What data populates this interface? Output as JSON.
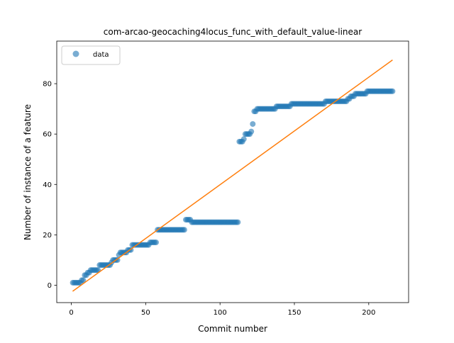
{
  "chart_data": {
    "type": "scatter",
    "title": "com-arcao-geocaching4locus_func_with_default_value-linear",
    "xlabel": "Commit number",
    "ylabel": "Number of instance of a feature",
    "xlim": [
      -9.8,
      226.8
    ],
    "ylim": [
      -6.9,
      96.9
    ],
    "xticks": [
      0,
      50,
      100,
      150,
      200
    ],
    "yticks": [
      0,
      20,
      40,
      60,
      80
    ],
    "grid": false,
    "legend_position": "top-left",
    "series": [
      {
        "name": "data",
        "kind": "scatter",
        "color": "#1f77b4",
        "points": [
          [
            1,
            1
          ],
          [
            2,
            1
          ],
          [
            3,
            1
          ],
          [
            4,
            1
          ],
          [
            5,
            1
          ],
          [
            6,
            1
          ],
          [
            7,
            2
          ],
          [
            8,
            2
          ],
          [
            9,
            4
          ],
          [
            10,
            4
          ],
          [
            11,
            5
          ],
          [
            12,
            5
          ],
          [
            13,
            6
          ],
          [
            14,
            6
          ],
          [
            15,
            6
          ],
          [
            16,
            6
          ],
          [
            17,
            6
          ],
          [
            18,
            6
          ],
          [
            19,
            8
          ],
          [
            20,
            8
          ],
          [
            21,
            8
          ],
          [
            22,
            8
          ],
          [
            23,
            8
          ],
          [
            24,
            8
          ],
          [
            25,
            8
          ],
          [
            26,
            8
          ],
          [
            27,
            9
          ],
          [
            28,
            10
          ],
          [
            29,
            10
          ],
          [
            30,
            10
          ],
          [
            31,
            10
          ],
          [
            32,
            12
          ],
          [
            33,
            13
          ],
          [
            34,
            13
          ],
          [
            35,
            13
          ],
          [
            36,
            13
          ],
          [
            37,
            13
          ],
          [
            38,
            14
          ],
          [
            39,
            14
          ],
          [
            40,
            14
          ],
          [
            41,
            16
          ],
          [
            42,
            16
          ],
          [
            43,
            16
          ],
          [
            44,
            16
          ],
          [
            45,
            16
          ],
          [
            46,
            16
          ],
          [
            47,
            16
          ],
          [
            48,
            16
          ],
          [
            49,
            16
          ],
          [
            50,
            16
          ],
          [
            51,
            16
          ],
          [
            52,
            16
          ],
          [
            53,
            17
          ],
          [
            54,
            17
          ],
          [
            55,
            17
          ],
          [
            56,
            17
          ],
          [
            57,
            17
          ],
          [
            58,
            22
          ],
          [
            59,
            22
          ],
          [
            60,
            22
          ],
          [
            61,
            22
          ],
          [
            62,
            22
          ],
          [
            63,
            22
          ],
          [
            64,
            22
          ],
          [
            65,
            22
          ],
          [
            66,
            22
          ],
          [
            67,
            22
          ],
          [
            68,
            22
          ],
          [
            69,
            22
          ],
          [
            70,
            22
          ],
          [
            71,
            22
          ],
          [
            72,
            22
          ],
          [
            73,
            22
          ],
          [
            74,
            22
          ],
          [
            75,
            22
          ],
          [
            76,
            22
          ],
          [
            77,
            26
          ],
          [
            78,
            26
          ],
          [
            79,
            26
          ],
          [
            80,
            26
          ],
          [
            81,
            25
          ],
          [
            82,
            25
          ],
          [
            83,
            25
          ],
          [
            84,
            25
          ],
          [
            85,
            25
          ],
          [
            86,
            25
          ],
          [
            87,
            25
          ],
          [
            88,
            25
          ],
          [
            89,
            25
          ],
          [
            90,
            25
          ],
          [
            91,
            25
          ],
          [
            92,
            25
          ],
          [
            93,
            25
          ],
          [
            94,
            25
          ],
          [
            95,
            25
          ],
          [
            96,
            25
          ],
          [
            97,
            25
          ],
          [
            98,
            25
          ],
          [
            99,
            25
          ],
          [
            100,
            25
          ],
          [
            101,
            25
          ],
          [
            102,
            25
          ],
          [
            103,
            25
          ],
          [
            104,
            25
          ],
          [
            105,
            25
          ],
          [
            106,
            25
          ],
          [
            107,
            25
          ],
          [
            108,
            25
          ],
          [
            109,
            25
          ],
          [
            110,
            25
          ],
          [
            111,
            25
          ],
          [
            112,
            25
          ],
          [
            113,
            57
          ],
          [
            114,
            57
          ],
          [
            115,
            57
          ],
          [
            116,
            58
          ],
          [
            117,
            60
          ],
          [
            118,
            60
          ],
          [
            119,
            60
          ],
          [
            120,
            60
          ],
          [
            121,
            61
          ],
          [
            122,
            64
          ],
          [
            123,
            69
          ],
          [
            124,
            69
          ],
          [
            125,
            70
          ],
          [
            126,
            70
          ],
          [
            127,
            70
          ],
          [
            128,
            70
          ],
          [
            129,
            70
          ],
          [
            130,
            70
          ],
          [
            131,
            70
          ],
          [
            132,
            70
          ],
          [
            133,
            70
          ],
          [
            134,
            70
          ],
          [
            135,
            70
          ],
          [
            136,
            70
          ],
          [
            137,
            70
          ],
          [
            138,
            71
          ],
          [
            139,
            71
          ],
          [
            140,
            71
          ],
          [
            141,
            71
          ],
          [
            142,
            71
          ],
          [
            143,
            71
          ],
          [
            144,
            71
          ],
          [
            145,
            71
          ],
          [
            146,
            71
          ],
          [
            147,
            71
          ],
          [
            148,
            72
          ],
          [
            149,
            72
          ],
          [
            150,
            72
          ],
          [
            151,
            72
          ],
          [
            152,
            72
          ],
          [
            153,
            72
          ],
          [
            154,
            72
          ],
          [
            155,
            72
          ],
          [
            156,
            72
          ],
          [
            157,
            72
          ],
          [
            158,
            72
          ],
          [
            159,
            72
          ],
          [
            160,
            72
          ],
          [
            161,
            72
          ],
          [
            162,
            72
          ],
          [
            163,
            72
          ],
          [
            164,
            72
          ],
          [
            165,
            72
          ],
          [
            166,
            72
          ],
          [
            167,
            72
          ],
          [
            168,
            72
          ],
          [
            169,
            72
          ],
          [
            170,
            72
          ],
          [
            171,
            73
          ],
          [
            172,
            73
          ],
          [
            173,
            73
          ],
          [
            174,
            73
          ],
          [
            175,
            73
          ],
          [
            176,
            73
          ],
          [
            177,
            73
          ],
          [
            178,
            73
          ],
          [
            179,
            73
          ],
          [
            180,
            73
          ],
          [
            181,
            73
          ],
          [
            182,
            73
          ],
          [
            183,
            73
          ],
          [
            184,
            73
          ],
          [
            185,
            73
          ],
          [
            186,
            74
          ],
          [
            187,
            74
          ],
          [
            188,
            75
          ],
          [
            189,
            75
          ],
          [
            190,
            75
          ],
          [
            191,
            76
          ],
          [
            192,
            76
          ],
          [
            193,
            76
          ],
          [
            194,
            76
          ],
          [
            195,
            76
          ],
          [
            196,
            76
          ],
          [
            197,
            76
          ],
          [
            198,
            76
          ],
          [
            199,
            77
          ],
          [
            200,
            77
          ],
          [
            201,
            77
          ],
          [
            202,
            77
          ],
          [
            203,
            77
          ],
          [
            204,
            77
          ],
          [
            205,
            77
          ],
          [
            206,
            77
          ],
          [
            207,
            77
          ],
          [
            208,
            77
          ],
          [
            209,
            77
          ],
          [
            210,
            77
          ],
          [
            211,
            77
          ],
          [
            212,
            77
          ],
          [
            213,
            77
          ],
          [
            214,
            77
          ],
          [
            215,
            77
          ],
          [
            216,
            77
          ]
        ]
      },
      {
        "kind": "line",
        "color": "#ff7f0e",
        "points": [
          [
            0.9,
            -2.4
          ],
          [
            216,
            89.4
          ]
        ]
      }
    ]
  }
}
